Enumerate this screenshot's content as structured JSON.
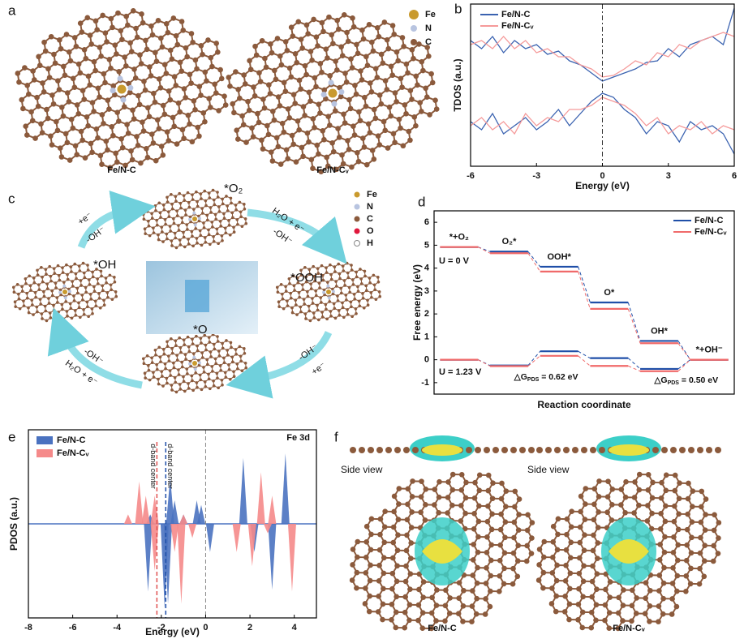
{
  "panels": {
    "a": {
      "label": "a",
      "legend": [
        "Fe",
        "N",
        "C"
      ],
      "captions": [
        "Fe/N-C",
        "Fe/N-Cᵥ"
      ]
    },
    "c": {
      "label": "c",
      "legend": [
        "Fe",
        "N",
        "C",
        "O",
        "H"
      ],
      "intermediates": [
        "*O₂",
        "*OOH",
        "*O",
        "*OH"
      ],
      "arrows": [
        "+e⁻",
        "-OH⁻",
        "H₂O + e⁻",
        "-OH⁻",
        "-OH⁻",
        "+e⁻",
        "-OH⁻",
        "H₂O + e⁻"
      ]
    },
    "f": {
      "label": "f",
      "side_view": [
        "Side view",
        "Side view"
      ],
      "captions": [
        "Fe/N-C",
        "Fe/N-Cᵥ"
      ]
    }
  },
  "chart_data": [
    {
      "panel": "b",
      "type": "line",
      "ylabel": "TDOS (a.u.)",
      "xlabel": "Energy (eV)",
      "xlim": [
        -6,
        6
      ],
      "xticks": [
        -6,
        -3,
        0,
        3,
        6
      ],
      "ylim": [
        -1,
        1
      ],
      "x": [
        -6,
        -5.5,
        -5,
        -4.5,
        -4,
        -3.5,
        -3,
        -2.5,
        -2,
        -1.5,
        -1,
        -0.5,
        0,
        0.5,
        1,
        1.5,
        2,
        2.5,
        3,
        3.5,
        4,
        4.5,
        5,
        5.5,
        6
      ],
      "series": [
        {
          "name": "Fe/N-C",
          "color": "#3a62b0",
          "up": [
            0.55,
            0.45,
            0.6,
            0.4,
            0.55,
            0.45,
            0.5,
            0.38,
            0.42,
            0.3,
            0.25,
            0.15,
            0.05,
            0.1,
            0.15,
            0.2,
            0.28,
            0.3,
            0.45,
            0.35,
            0.5,
            0.55,
            0.6,
            0.5,
            0.95
          ],
          "down": [
            -0.45,
            -0.55,
            -0.35,
            -0.6,
            -0.5,
            -0.4,
            -0.55,
            -0.45,
            -0.3,
            -0.5,
            -0.35,
            -0.2,
            -0.1,
            -0.15,
            -0.3,
            -0.4,
            -0.6,
            -0.45,
            -0.5,
            -0.7,
            -0.45,
            -0.55,
            -0.5,
            -0.6,
            -0.85
          ]
        },
        {
          "name": "Fe/N-Cᵥ",
          "color": "#f59a9a",
          "up": [
            0.5,
            0.55,
            0.45,
            0.6,
            0.45,
            0.55,
            0.4,
            0.45,
            0.35,
            0.35,
            0.25,
            0.2,
            0.1,
            0.12,
            0.2,
            0.3,
            0.25,
            0.4,
            0.35,
            0.5,
            0.45,
            0.55,
            0.6,
            0.65,
            0.6
          ],
          "down": [
            -0.5,
            -0.4,
            -0.55,
            -0.45,
            -0.6,
            -0.35,
            -0.5,
            -0.4,
            -0.45,
            -0.3,
            -0.3,
            -0.25,
            -0.15,
            -0.2,
            -0.25,
            -0.35,
            -0.5,
            -0.4,
            -0.6,
            -0.5,
            -0.55,
            -0.45,
            -0.6,
            -0.5,
            -0.55
          ]
        }
      ]
    },
    {
      "panel": "d",
      "type": "energy",
      "ylabel": "Free energy (eV)",
      "xlabel": "Reaction coordinate",
      "ylim": [
        -1.5,
        6.5
      ],
      "yticks": [
        -1,
        0,
        1,
        2,
        3,
        4,
        5,
        6
      ],
      "categories": [
        "*+O₂",
        "O₂*",
        "OOH*",
        "O*",
        "OH*",
        "*+OH⁻"
      ],
      "annotations": [
        "U = 0 V",
        "U = 1.23 V"
      ],
      "series": [
        {
          "name": "Fe/N-C",
          "color": "#1f4fa8",
          "values": [
            4.92,
            4.72,
            4.06,
            2.5,
            0.82,
            0
          ],
          "values_u": [
            0,
            -0.25,
            0.37,
            0.07,
            -0.4,
            0
          ],
          "pds_label": [
            "△G",
            "PDS",
            " = 0.62 eV"
          ]
        },
        {
          "name": "Fe/N-Cᵥ",
          "color": "#f06a6a",
          "values": [
            4.92,
            4.65,
            3.85,
            2.22,
            0.72,
            0
          ],
          "values_u": [
            0,
            -0.28,
            0.17,
            -0.27,
            -0.5,
            0
          ],
          "pds_label": [
            "△G",
            "PDS",
            " = 0.50 eV"
          ]
        }
      ]
    },
    {
      "panel": "e",
      "type": "pdos",
      "ylabel": "PDOS (a.u.)",
      "xlabel": "Energy (eV)",
      "note": "Fe 3d",
      "band_label": "d-band center",
      "xlim": [
        -8,
        5
      ],
      "xticks": [
        -8,
        -6,
        -4,
        -2,
        0,
        2,
        4
      ],
      "ylim": [
        -1,
        1
      ],
      "series": [
        {
          "name": "Fe/N-C",
          "color": "#4a72c0",
          "d_band_center": -1.8,
          "x": [
            -2.5,
            -1.6,
            -1.4,
            -1,
            -0.4,
            -0.2,
            1.7,
            3.6,
            -2.6,
            -1.85,
            -1.7,
            0.2,
            2.2,
            3
          ],
          "values": [
            0.1,
            0.5,
            0.25,
            0.1,
            0.25,
            0.2,
            0.7,
            0.75,
            -0.72,
            -0.9,
            -0.85,
            -0.3,
            -0.3,
            -0.7
          ]
        },
        {
          "name": "Fe/N-Cᵥ",
          "color": "#f58a8a",
          "d_band_center": -2.2,
          "x": [
            -3.5,
            -3,
            -2.7,
            -2.3,
            -1,
            2.5,
            3,
            -2.3,
            -1.4,
            -1.1,
            -0.6,
            1.4,
            2.1,
            2.8,
            3.9
          ],
          "values": [
            0.1,
            0.45,
            0.3,
            0.3,
            0.1,
            0.55,
            0.3,
            -0.5,
            -0.3,
            -0.85,
            -0.15,
            -0.3,
            -0.45,
            -0.1,
            -0.72
          ]
        }
      ]
    }
  ]
}
